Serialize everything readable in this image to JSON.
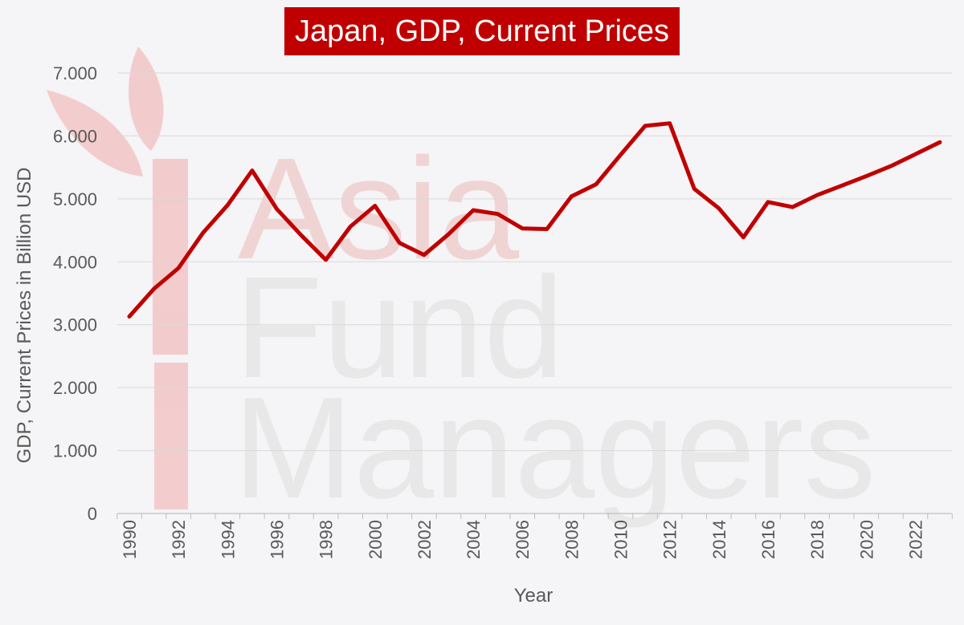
{
  "chart_data": {
    "type": "line",
    "title": "Japan, GDP, Current Prices",
    "xlabel": "Year",
    "ylabel": "GDP, Current Prices in Billion USD",
    "ylim": [
      0,
      7000
    ],
    "xlim": [
      1990,
      2023
    ],
    "grid": true,
    "y_ticks": [
      "0",
      "1.000",
      "2.000",
      "3.000",
      "4.000",
      "5.000",
      "6.000",
      "7.000"
    ],
    "x_tick_labels": [
      "1990",
      "1992",
      "1994",
      "1996",
      "1998",
      "2000",
      "2002",
      "2004",
      "2006",
      "2008",
      "2010",
      "2012",
      "2014",
      "2016",
      "2018",
      "2020",
      "2022"
    ],
    "x": [
      1990,
      1991,
      1992,
      1993,
      1994,
      1995,
      1996,
      1997,
      1998,
      1999,
      2000,
      2001,
      2002,
      2003,
      2004,
      2005,
      2006,
      2007,
      2008,
      2009,
      2010,
      2011,
      2012,
      2013,
      2014,
      2015,
      2016,
      2017,
      2018,
      2019,
      2020,
      2021,
      2022,
      2023
    ],
    "series": [
      {
        "values": [
          3130,
          3570,
          3900,
          4460,
          4900,
          5450,
          4840,
          4420,
          4030,
          4560,
          4890,
          4300,
          4110,
          4440,
          4820,
          4760,
          4530,
          4520,
          5040,
          5230,
          5700,
          6160,
          6200,
          5160,
          4850,
          4390,
          4950,
          4870,
          5060,
          5210,
          5360,
          5520,
          5710,
          5900
        ],
        "color": "#c00000"
      }
    ]
  },
  "watermark": {
    "line1": "Asia",
    "line2": "Fund",
    "line3": "Managers",
    "color_red": "#e8a0a0",
    "color_gray": "#d9d9d9"
  }
}
